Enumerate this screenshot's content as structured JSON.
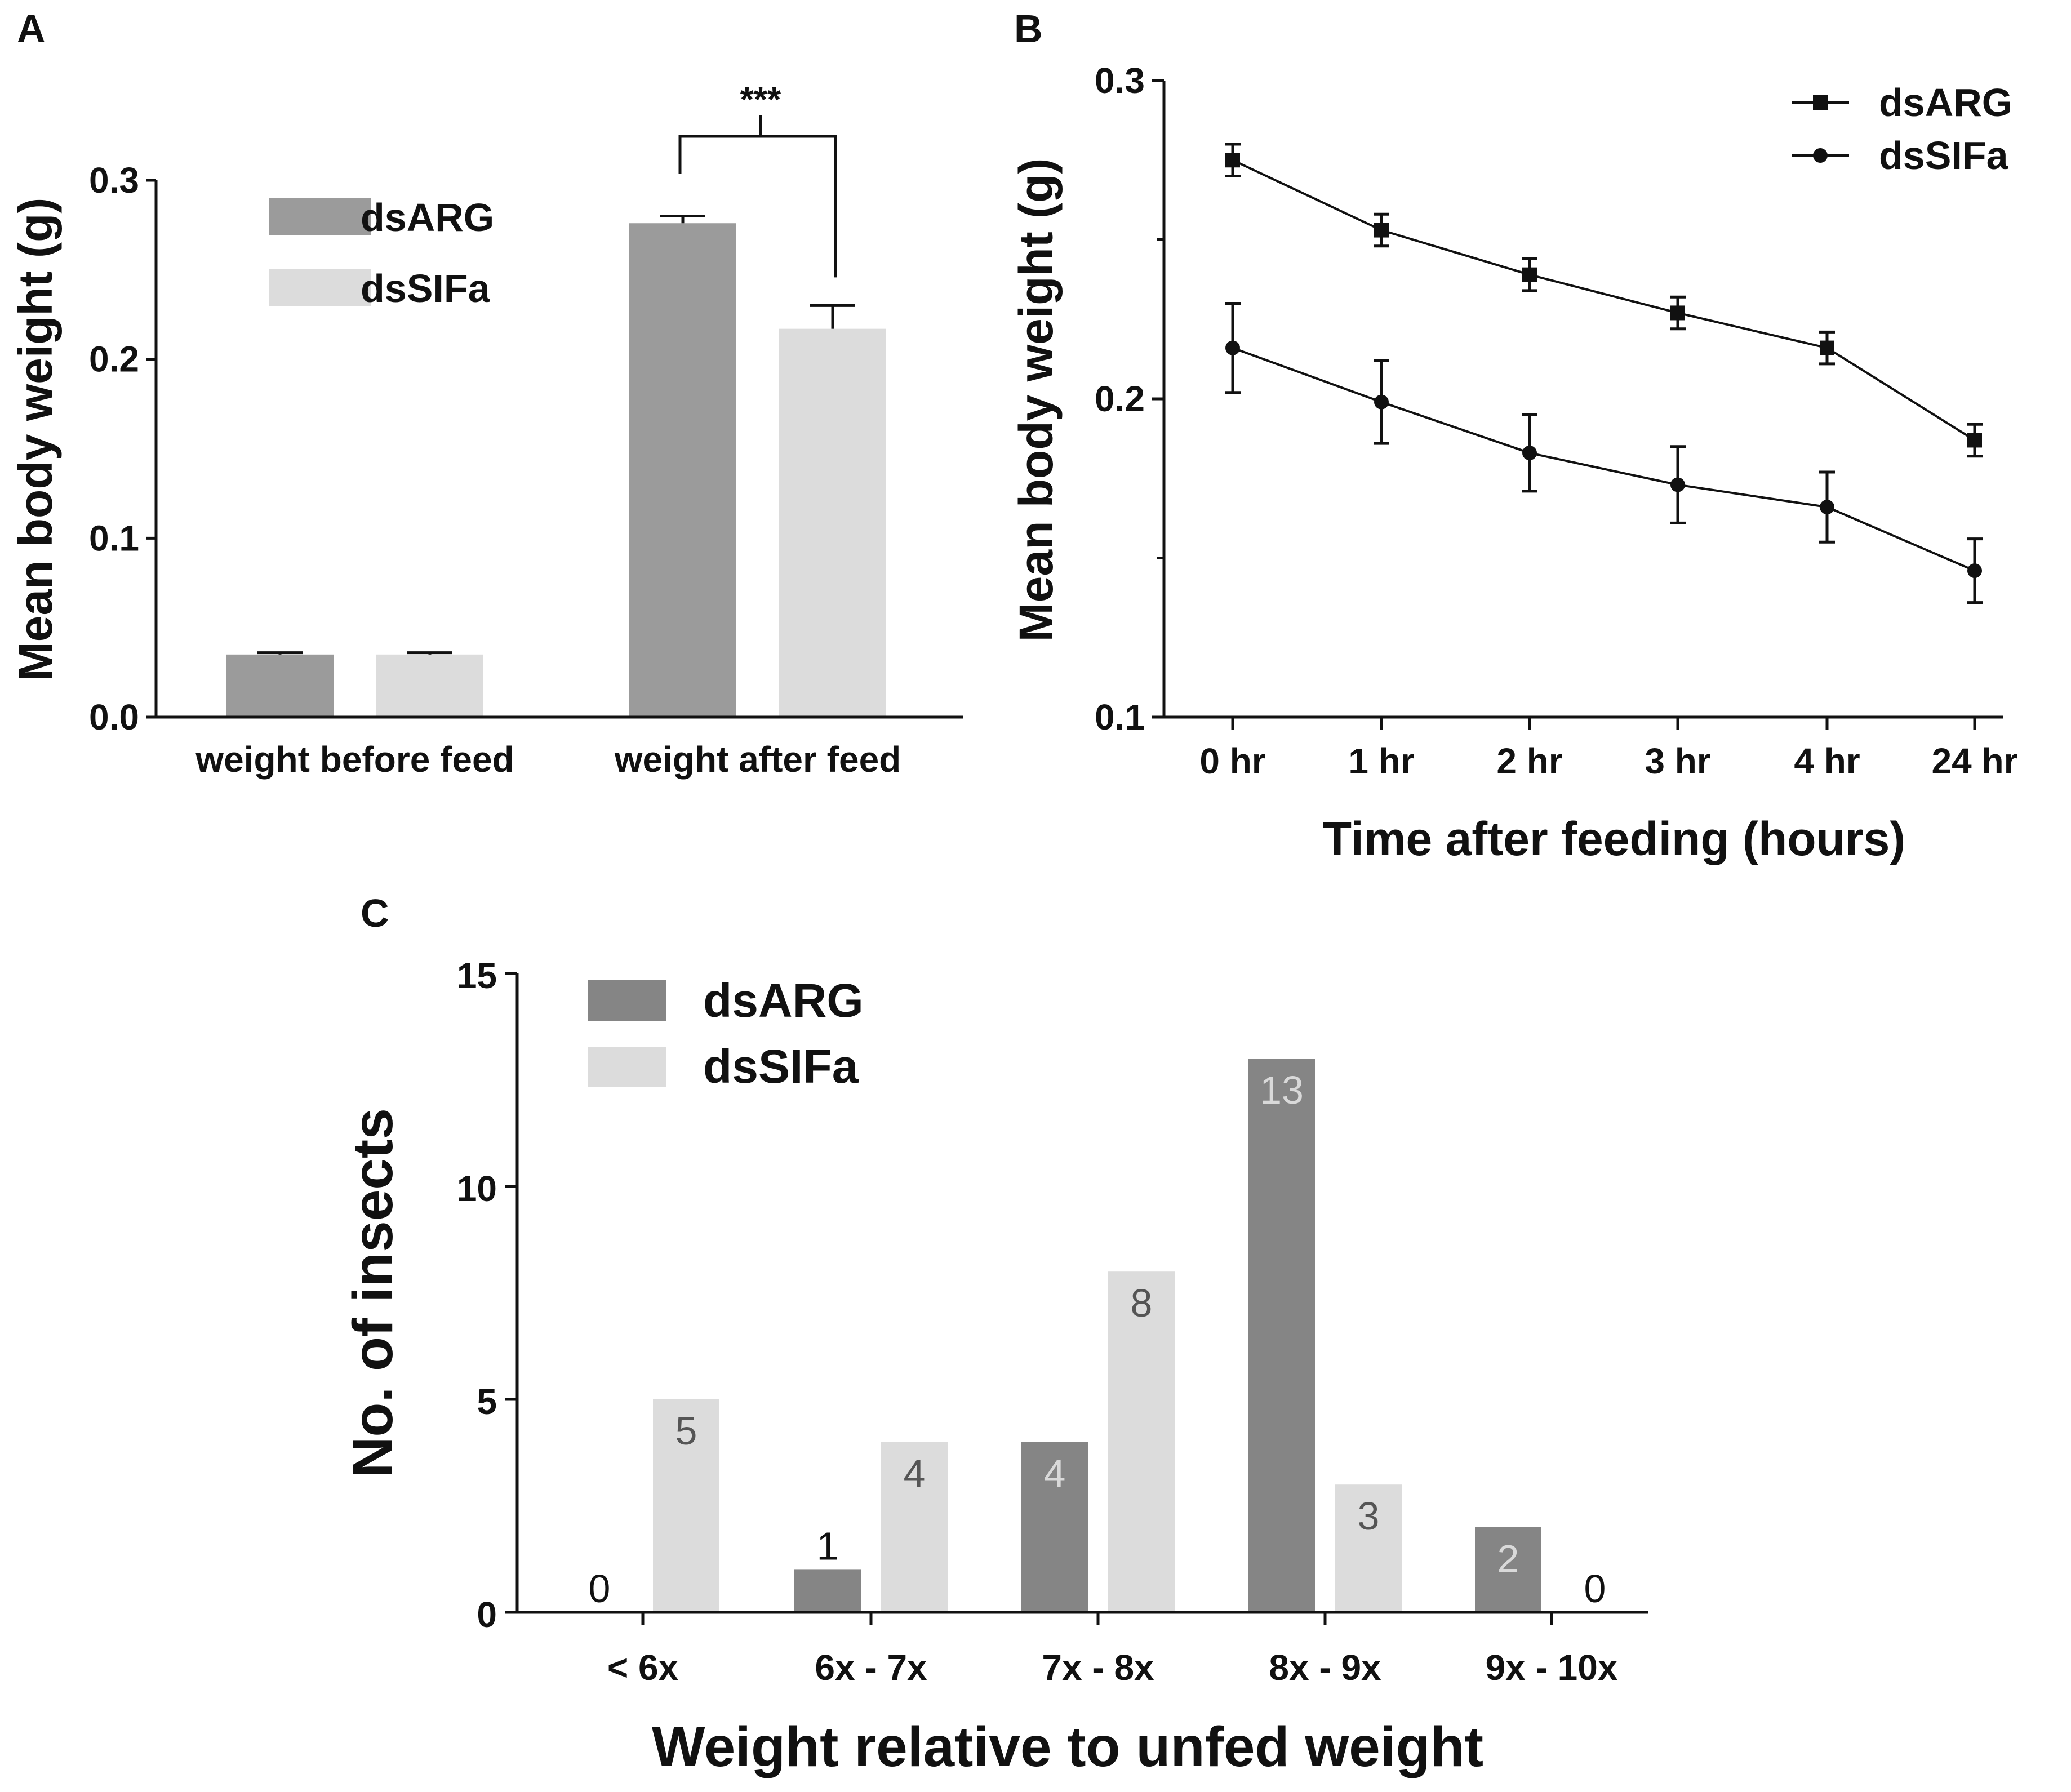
{
  "colors": {
    "dsARG_a": "#9b9b9b",
    "dsSIFa_a": "#dcdcdc",
    "dsARG_c": "#858585",
    "dsSIFa_c": "#dcdcdc",
    "ink": "#111111",
    "label_on_dark": "#d9d9d9",
    "label_on_light": "#555555"
  },
  "chart_data": [
    {
      "panel": "A",
      "type": "bar",
      "title": "",
      "xlabel": "",
      "ylabel": "Mean body weight (g)",
      "ylim": [
        0,
        0.3
      ],
      "yticks": [
        "0.0",
        "0.1",
        "0.2",
        "0.3"
      ],
      "categories": [
        "weight before feed",
        "weight after feed"
      ],
      "series": [
        {
          "name": "dsARG",
          "values": [
            0.035,
            0.276
          ],
          "errors": [
            0.001,
            0.004
          ]
        },
        {
          "name": "dsSIFa",
          "values": [
            0.035,
            0.217
          ],
          "errors": [
            0.001,
            0.013
          ]
        }
      ],
      "legend": [
        "dsARG",
        "dsSIFa"
      ],
      "annotations": [
        "***"
      ]
    },
    {
      "panel": "B",
      "type": "line",
      "title": "",
      "xlabel": "Time after feeding (hours)",
      "ylabel": "Mean body weight (g)",
      "ylim": [
        0.1,
        0.3
      ],
      "yticks": [
        "0.1",
        "0.2",
        "0.3"
      ],
      "categories": [
        "0 hr",
        "1 hr",
        "2 hr",
        "3 hr",
        "4 hr",
        "24 hr"
      ],
      "series": [
        {
          "name": "dsARG",
          "marker": "square",
          "values": [
            0.275,
            0.253,
            0.239,
            0.227,
            0.216,
            0.187
          ],
          "errors": [
            0.005,
            0.005,
            0.005,
            0.005,
            0.005,
            0.005
          ]
        },
        {
          "name": "dsSIFa",
          "marker": "circle",
          "values": [
            0.216,
            0.199,
            0.183,
            0.173,
            0.166,
            0.146
          ],
          "errors": [
            0.014,
            0.013,
            0.012,
            0.012,
            0.011,
            0.01
          ]
        }
      ],
      "legend": [
        "dsARG",
        "dsSIFa"
      ]
    },
    {
      "panel": "C",
      "type": "bar",
      "title": "",
      "xlabel": "Weight relative to unfed weight",
      "ylabel": "No. of insects",
      "ylim": [
        0,
        15
      ],
      "yticks": [
        "0",
        "5",
        "10",
        "15"
      ],
      "categories": [
        "< 6x",
        "6x - 7x",
        "7x - 8x",
        "8x - 9x",
        "9x - 10x"
      ],
      "series": [
        {
          "name": "dsARG",
          "values": [
            0,
            1,
            4,
            13,
            2
          ],
          "labels": [
            "0",
            "1",
            "4",
            "13",
            "2"
          ]
        },
        {
          "name": "dsSIFa",
          "values": [
            5,
            4,
            8,
            3,
            0
          ],
          "labels": [
            "5",
            "4",
            "8",
            "3",
            "0"
          ]
        }
      ],
      "legend": [
        "dsARG",
        "dsSIFa"
      ]
    }
  ]
}
